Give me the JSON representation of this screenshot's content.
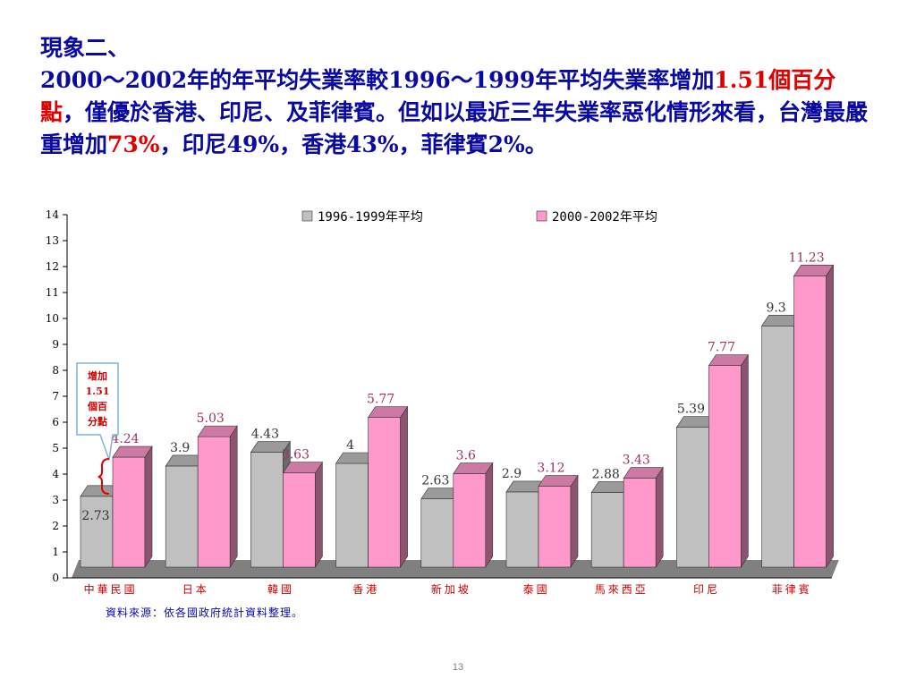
{
  "slide": {
    "heading_line1": "現象二、",
    "heading_seg1": "2000～2002年的年平均失業率較1996～1999年平均失業率增加",
    "heading_hl1": "1.51個百分點",
    "heading_seg2": "，僅優於香港、印尼、及菲律賓。但如以最近三年失業率惡化情形來看，台灣最嚴重增加",
    "heading_hl2": "73%",
    "heading_seg3": "，印尼49%，香港43%，菲律賓2%。",
    "source_note": "資料來源：依各國政府統計資料整理。",
    "page_number": "13"
  },
  "callout": {
    "lines": [
      "增加",
      "1.51",
      "個百",
      "分點"
    ]
  },
  "colors": {
    "series1": "#c0c0c0",
    "series2": "#ff99cc",
    "label1": "#333333",
    "label2": "#993366",
    "category": "#cc0000",
    "floor": "#808080",
    "heading": "#0a0aa0"
  },
  "chart_data": {
    "type": "bar",
    "categories": [
      "中華民國",
      "日本",
      "韓國",
      "香港",
      "新加坡",
      "泰國",
      "馬來西亞",
      "印尼",
      "菲律賓"
    ],
    "series": [
      {
        "name": "1996-1999年平均",
        "values": [
          2.73,
          3.9,
          4.43,
          4,
          2.63,
          2.9,
          2.88,
          5.39,
          9.3
        ]
      },
      {
        "name": "2000-2002年平均",
        "values": [
          4.24,
          5.03,
          3.63,
          5.77,
          3.6,
          3.12,
          3.43,
          7.77,
          11.23
        ]
      }
    ],
    "ylim": [
      0,
      14
    ],
    "yticks": [
      0,
      1,
      2,
      3,
      4,
      5,
      6,
      7,
      8,
      9,
      10,
      11,
      12,
      13,
      14
    ],
    "legend_position": "top",
    "style": "3d-clustered-column",
    "grid": false
  }
}
